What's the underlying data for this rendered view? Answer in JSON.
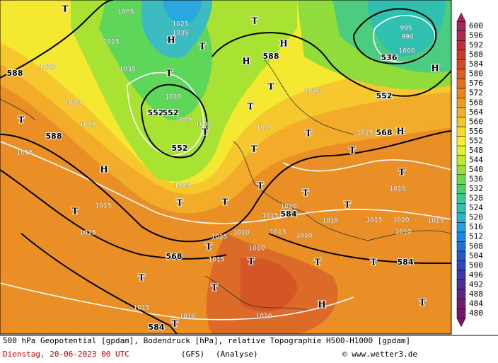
{
  "legend": {
    "ticks": [
      600,
      596,
      592,
      588,
      584,
      580,
      576,
      572,
      568,
      564,
      560,
      556,
      552,
      548,
      544,
      540,
      536,
      532,
      528,
      524,
      520,
      516,
      512,
      508,
      504,
      500,
      496,
      492,
      488,
      484,
      480
    ],
    "colors": [
      "#a0285a",
      "#b02a4a",
      "#c0303a",
      "#cc3a2a",
      "#d24a24",
      "#dc5e20",
      "#e4701e",
      "#ea8420",
      "#f09822",
      "#f4ae28",
      "#f8c430",
      "#fada30",
      "#f8ec30",
      "#e2f030",
      "#bcea30",
      "#96e038",
      "#6ed848",
      "#4ed068",
      "#3cc890",
      "#30c0b0",
      "#28b4cc",
      "#24a0dc",
      "#2088e0",
      "#2070d8",
      "#2858c8",
      "#3048b8",
      "#4038a8",
      "#502c98",
      "#602488",
      "#701c78",
      "#7a1468"
    ]
  },
  "map": {
    "geopotential_labels": [
      "588",
      "588",
      "552",
      "552",
      "552",
      "588",
      "536",
      "552",
      "568",
      "568",
      "584",
      "584",
      "584"
    ],
    "pressure_centers": [
      "T",
      "T",
      "H",
      "H",
      "T",
      "T",
      "T",
      "T",
      "T",
      "T",
      "H",
      "T",
      "T",
      "T",
      "H",
      "T",
      "T",
      "T",
      "T",
      "T",
      "T",
      "T",
      "T",
      "T",
      "T",
      "H",
      "T",
      "H",
      "T",
      "T",
      "H",
      "T",
      "T"
    ],
    "pressure_labels": [
      "1005",
      "1015",
      "1020",
      "1025",
      "1030",
      "1035",
      "1020",
      "1015",
      "1020",
      "1015",
      "1015",
      "1015",
      "1010",
      "1005",
      "1000",
      "1015",
      "1005",
      "1015",
      "1010",
      "1015",
      "1020",
      "1015",
      "1010",
      "1010",
      "1015",
      "1020",
      "1010",
      "1015",
      "1010",
      "1015",
      "1015",
      "1010",
      "1010",
      "1015",
      "1010",
      "995",
      "990",
      "1000"
    ]
  },
  "footer": {
    "description": "500 hPa Geopotential [gpdam], Bodendruck [hPa], relative Topographie H500-H1000 [gpdam]",
    "date": "Dienstag, 20-06-2023  00 UTC",
    "model": "(GFS)",
    "run_type": "(Analyse)",
    "copyright": "© www.wetter3.de"
  }
}
